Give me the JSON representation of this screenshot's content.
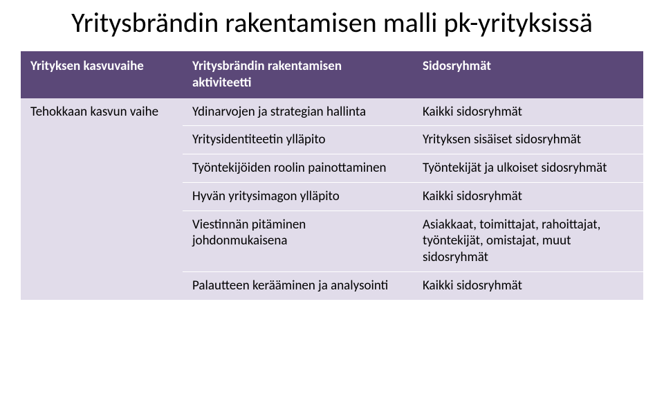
{
  "title": "Yritysbrändin rakentamisen malli pk-yrityksissä",
  "colors": {
    "header_bg": "#5b4878",
    "header_text": "#ffffff",
    "row_light": "#e1dcea",
    "row_dark": "#c5bbd6",
    "border": "#ffffff",
    "body_text": "#000000"
  },
  "table": {
    "header": {
      "col1": "Yrityksen kasvuvaihe",
      "col2": "Yritysbrändin rakentamisen aktiviteetti",
      "col3": "Sidosryhmät"
    },
    "stub": "Tehokkaan kasvun vaihe",
    "rows": [
      {
        "activity": "Ydinarvojen ja strategian hallinta",
        "stakeholders": "Kaikki sidosryhmät"
      },
      {
        "activity": "Yritysidentiteetin ylläpito",
        "stakeholders": "Yrityksen sisäiset sidosryhmät"
      },
      {
        "activity": "Työntekijöiden roolin painottaminen",
        "stakeholders": "Työntekijät ja ulkoiset sidosryhmät"
      },
      {
        "activity": "Hyvän yritysimagon ylläpito",
        "stakeholders": "Kaikki sidosryhmät"
      },
      {
        "activity": "Viestinnän pitäminen johdonmukaisena",
        "stakeholders": "Asiakkaat, toimittajat, rahoittajat, työntekijät, omistajat, muut sidosryhmät"
      },
      {
        "activity": "Palautteen kerääminen ja analysointi",
        "stakeholders": "Kaikki sidosryhmät"
      }
    ]
  }
}
